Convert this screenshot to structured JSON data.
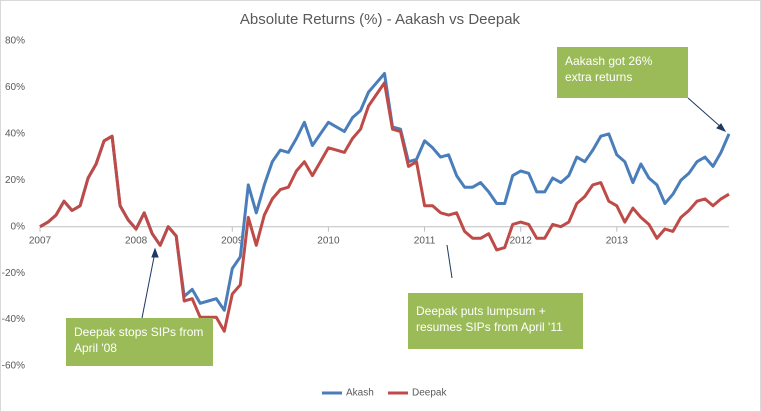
{
  "chart_data": {
    "type": "line",
    "title": "Absolute Returns (%) - Aakash vs Deepak",
    "categories": [
      "2007",
      null,
      null,
      null,
      null,
      null,
      null,
      null,
      null,
      null,
      null,
      null,
      "2008",
      null,
      null,
      null,
      null,
      null,
      null,
      null,
      null,
      null,
      null,
      null,
      "2009",
      null,
      null,
      null,
      null,
      null,
      null,
      null,
      null,
      null,
      null,
      null,
      "2010",
      null,
      null,
      null,
      null,
      null,
      null,
      null,
      null,
      null,
      null,
      null,
      "2011",
      null,
      null,
      null,
      null,
      null,
      null,
      null,
      null,
      null,
      null,
      null,
      "2012",
      null,
      null,
      null,
      null,
      null,
      null,
      null,
      null,
      null,
      null,
      null,
      "2013",
      null,
      null,
      null,
      null,
      null,
      null,
      null,
      null,
      null,
      null,
      null,
      null,
      null,
      null
    ],
    "series": [
      {
        "name": "Akash",
        "color": "#4a7ebb",
        "values": [
          0,
          2,
          5,
          11,
          7,
          9,
          21,
          27,
          37,
          39,
          9,
          3,
          -1,
          6,
          -3,
          -8,
          0,
          -4,
          -30,
          -27,
          -33,
          -32,
          -31,
          -36,
          -18,
          -13,
          18,
          6,
          18,
          28,
          33,
          32,
          38,
          45,
          35,
          40,
          45,
          43,
          41,
          47,
          50,
          58,
          62,
          66,
          43,
          42,
          28,
          29,
          37,
          34,
          30,
          31,
          22,
          17,
          17,
          19,
          15,
          10,
          10,
          22,
          24,
          23,
          15,
          15,
          21,
          19,
          22,
          30,
          28,
          33,
          39,
          40,
          31,
          28,
          19,
          27,
          21,
          18,
          10,
          14,
          20,
          23,
          28,
          30,
          26,
          32,
          40
        ]
      },
      {
        "name": "Deepak",
        "color": "#be4b48",
        "values": [
          0,
          2,
          5,
          11,
          7,
          9,
          21,
          27,
          37,
          39,
          9,
          3,
          -1,
          6,
          -3,
          -8,
          0,
          -4,
          -32,
          -31,
          -39,
          -39,
          -39,
          -45,
          -29,
          -25,
          4,
          -8,
          5,
          12,
          16,
          17,
          24,
          28,
          22,
          28,
          34,
          33,
          32,
          38,
          42,
          52,
          57,
          62,
          42,
          41,
          26,
          28,
          9,
          9,
          6,
          5,
          6,
          -2,
          -5,
          -5,
          -3,
          -10,
          -9,
          1,
          2,
          1,
          -5,
          -5,
          1,
          0,
          2,
          10,
          13,
          18,
          19,
          11,
          9,
          2,
          8,
          4,
          1,
          -5,
          -1,
          -2,
          4,
          7,
          11,
          12,
          9,
          12,
          14
        ]
      }
    ],
    "ylim": [
      -60,
      80
    ],
    "yticks": [
      {
        "value": -60,
        "label": "-60%"
      },
      {
        "value": -40,
        "label": "-40%"
      },
      {
        "value": -20,
        "label": "-20%"
      },
      {
        "value": 0,
        "label": "0%"
      },
      {
        "value": 20,
        "label": "20%"
      },
      {
        "value": 40,
        "label": "40%"
      },
      {
        "value": 60,
        "label": "60%"
      },
      {
        "value": 80,
        "label": "80%"
      }
    ],
    "grid": false,
    "legend": "bottom",
    "annotations": [
      {
        "text": "Deepak stops SIPs from April '08"
      },
      {
        "text": "Deepak puts lumpsum + resumes SIPs from April '11"
      },
      {
        "text": "Aakash got 26% extra returns"
      }
    ]
  }
}
